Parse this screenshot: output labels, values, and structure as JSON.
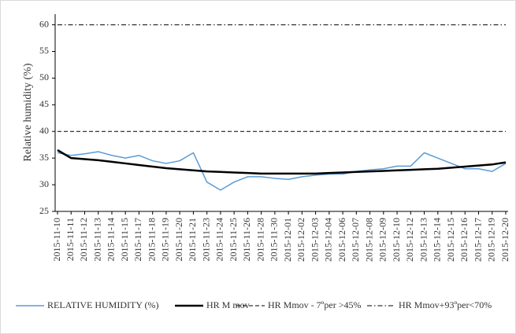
{
  "chart_data": {
    "type": "line",
    "y_label": "Relative humidity (%)",
    "categories": [
      "2015-11-10",
      "2015-11-11",
      "2015-11-12",
      "2015-11-13",
      "2015-11-14",
      "2015-11-15",
      "2015-11-17",
      "2015-11-18",
      "2015-11-19",
      "2015-11-20",
      "2015-11-21",
      "2015-11-23",
      "2015-11-24",
      "2015-11-25",
      "2015-11-26",
      "2015-11-28",
      "2015-11-30",
      "2015-12-01",
      "2015-12-02",
      "2015-12-03",
      "2015-12-04",
      "2015-12-06",
      "2015-12-07",
      "2015-12-08",
      "2015-12-09",
      "2015-12-10",
      "2015-12-12",
      "2015-12-13",
      "2015-12-14",
      "2015-12-15",
      "2015-12-16",
      "2015-12-17",
      "2015-12-19",
      "2015-12-20"
    ],
    "series": [
      {
        "name": "RELATIVE HUMIDITY (%)",
        "color": "#5b9bd5",
        "line_style": "solid",
        "width": 1.5,
        "values": [
          36,
          35.5,
          35.8,
          36.2,
          35.5,
          35,
          35.5,
          34.5,
          34,
          34.5,
          36,
          30.5,
          29,
          30.5,
          31.5,
          31.5,
          31.2,
          31,
          31.5,
          31.8,
          32,
          32,
          32.5,
          32.8,
          33,
          33.5,
          33.5,
          36,
          35,
          34,
          33,
          33,
          32.5,
          34
        ]
      },
      {
        "name": "HR M mov",
        "color": "#000000",
        "line_style": "solid",
        "width": 2.5,
        "values": [
          36.5,
          35,
          34.8,
          34.6,
          34.3,
          34,
          33.7,
          33.4,
          33.1,
          32.9,
          32.7,
          32.5,
          32.4,
          32.3,
          32.2,
          32.1,
          32.1,
          32.1,
          32.1,
          32.1,
          32.2,
          32.3,
          32.4,
          32.5,
          32.6,
          32.7,
          32.8,
          32.9,
          33,
          33.2,
          33.4,
          33.6,
          33.8,
          34.2
        ]
      },
      {
        "name": "HR Mmov - 7ºper >45%",
        "color": "#000000",
        "line_style": "dashed",
        "width": 1,
        "values": [
          40,
          40,
          40,
          40,
          40,
          40,
          40,
          40,
          40,
          40,
          40,
          40,
          40,
          40,
          40,
          40,
          40,
          40,
          40,
          40,
          40,
          40,
          40,
          40,
          40,
          40,
          40,
          40,
          40,
          40,
          40,
          40,
          40,
          40
        ]
      },
      {
        "name": "HR Mmov+93ºper<70%",
        "color": "#000000",
        "line_style": "dashdot",
        "width": 1,
        "values": [
          60,
          60,
          60,
          60,
          60,
          60,
          60,
          60,
          60,
          60,
          60,
          60,
          60,
          60,
          60,
          60,
          60,
          60,
          60,
          60,
          60,
          60,
          60,
          60,
          60,
          60,
          60,
          60,
          60,
          60,
          60,
          60,
          60,
          60
        ]
      }
    ],
    "ylim": [
      25,
      62
    ],
    "yticks": [
      25,
      30,
      35,
      40,
      45,
      50,
      55,
      60
    ],
    "legend": "bottom"
  }
}
